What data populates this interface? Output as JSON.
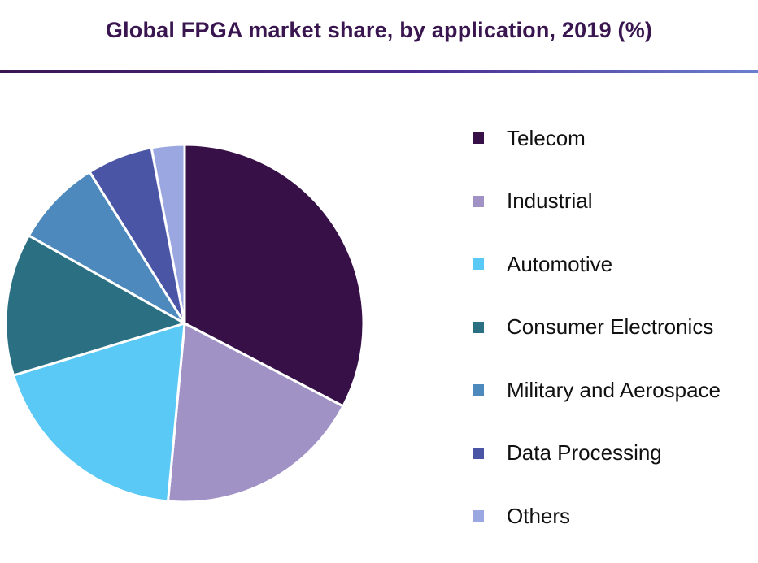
{
  "colors": {
    "title": "#3a1650",
    "rule_start": "#3a1650",
    "rule_end": "#6a7fcf"
  },
  "chart_data": {
    "type": "pie",
    "title": "Global FPGA market share, by application, 2019 (%)",
    "legend_position": "right",
    "slices": [
      {
        "name": "Telecom",
        "value": 33,
        "color": "#361047"
      },
      {
        "name": "Industrial",
        "value": 19,
        "color": "#a192c6"
      },
      {
        "name": "Automotive",
        "value": 19,
        "color": "#5bc9f5"
      },
      {
        "name": "Consumer Electronics",
        "value": 13,
        "color": "#2b7082"
      },
      {
        "name": "Military and Aerospace",
        "value": 8,
        "color": "#4d89bd"
      },
      {
        "name": "Data Processing",
        "value": 6,
        "color": "#4a55a6"
      },
      {
        "name": "Others",
        "value": 3,
        "color": "#9aa7e0"
      }
    ]
  }
}
